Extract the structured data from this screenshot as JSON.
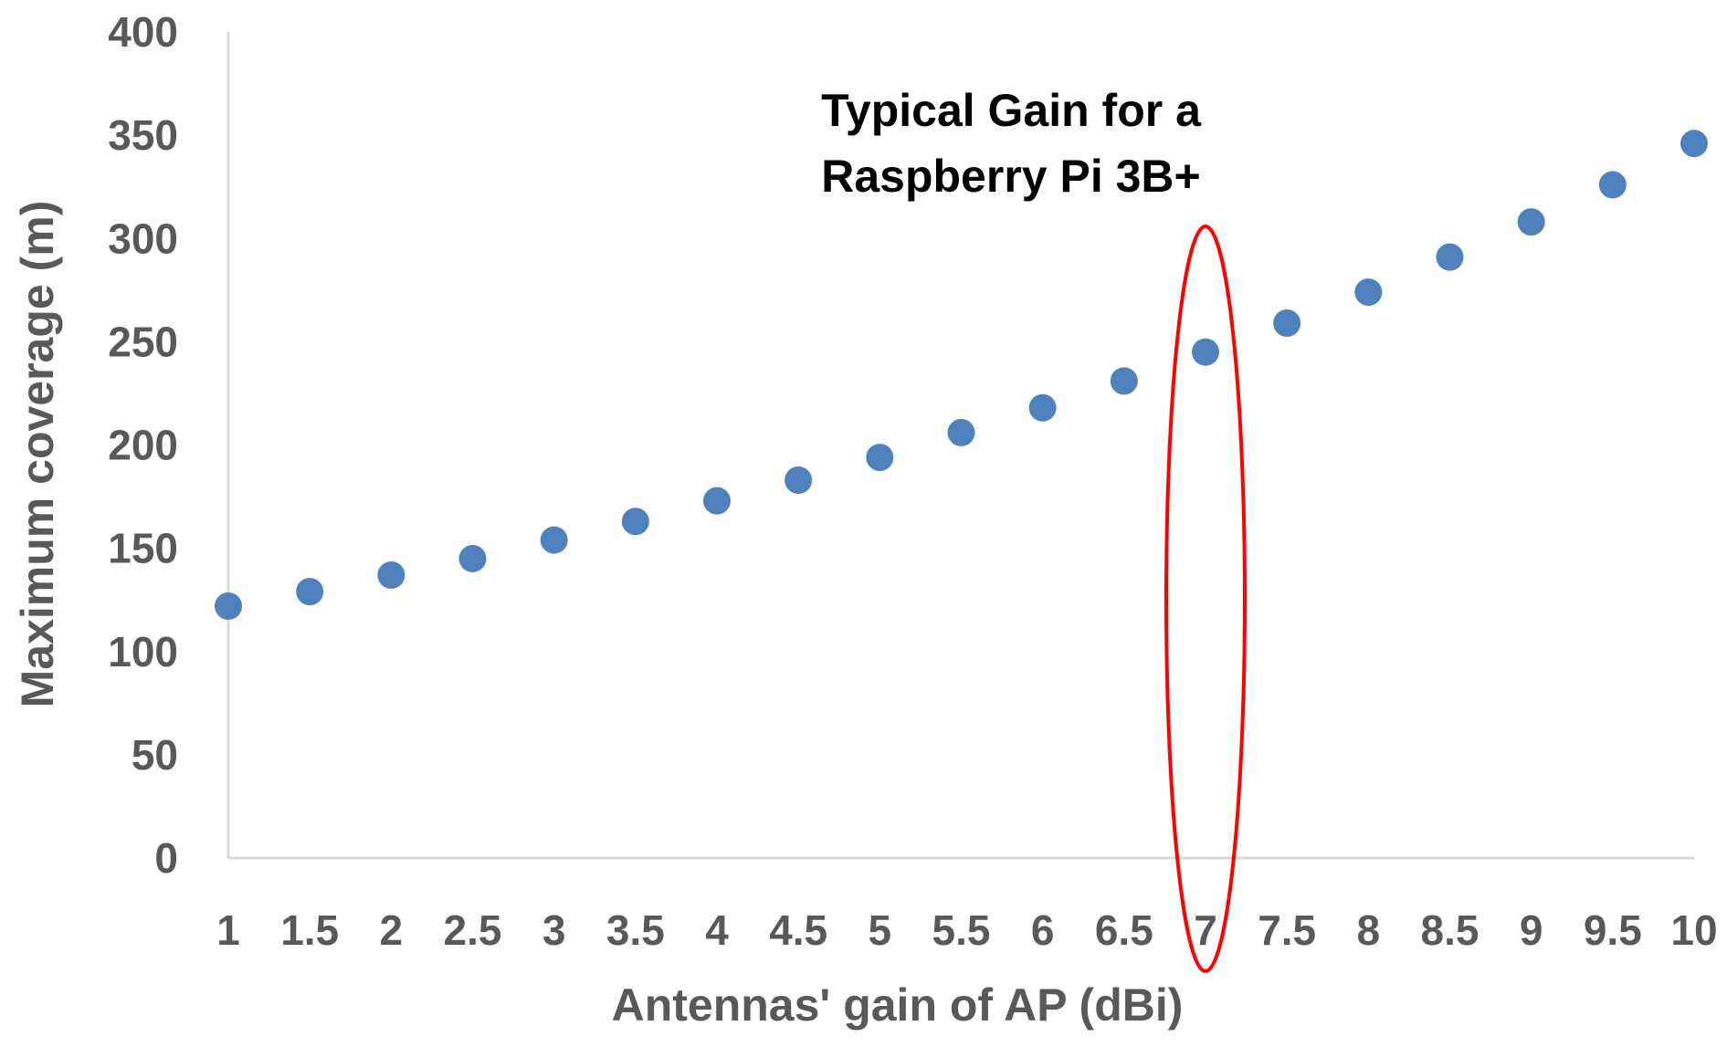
{
  "chart_data": {
    "type": "scatter",
    "title": "",
    "xlabel": "Antennas' gain of AP (dBi)",
    "ylabel": "Maximum coverage (m)",
    "x": [
      1,
      1.5,
      2,
      2.5,
      3,
      3.5,
      4,
      4.5,
      5,
      5.5,
      6,
      6.5,
      7,
      7.5,
      8,
      8.5,
      9,
      9.5,
      10
    ],
    "x_tick_labels": [
      "1",
      "1.5",
      "2",
      "2.5",
      "3",
      "3.5",
      "4",
      "4.5",
      "5",
      "5.5",
      "6",
      "6.5",
      "7",
      "7.5",
      "8",
      "8.5",
      "9",
      "9.5",
      "10"
    ],
    "series": [
      {
        "name": "Maximum coverage",
        "color": "#4f81bd",
        "values": [
          122,
          129,
          137,
          145,
          154,
          163,
          173,
          183,
          194,
          206,
          218,
          231,
          245,
          259,
          274,
          291,
          308,
          326,
          346
        ]
      }
    ],
    "ylim": [
      0,
      400
    ],
    "y_ticks": [
      0,
      50,
      100,
      150,
      200,
      250,
      300,
      350,
      400
    ],
    "grid": false,
    "axis_color": "#d9d9d9",
    "label_color": "#595959",
    "annotation": {
      "lines": [
        "Typical Gain for a",
        "Raspberry Pi 3B+"
      ],
      "x_value": 7,
      "highlight_color": "#ff0000"
    }
  }
}
